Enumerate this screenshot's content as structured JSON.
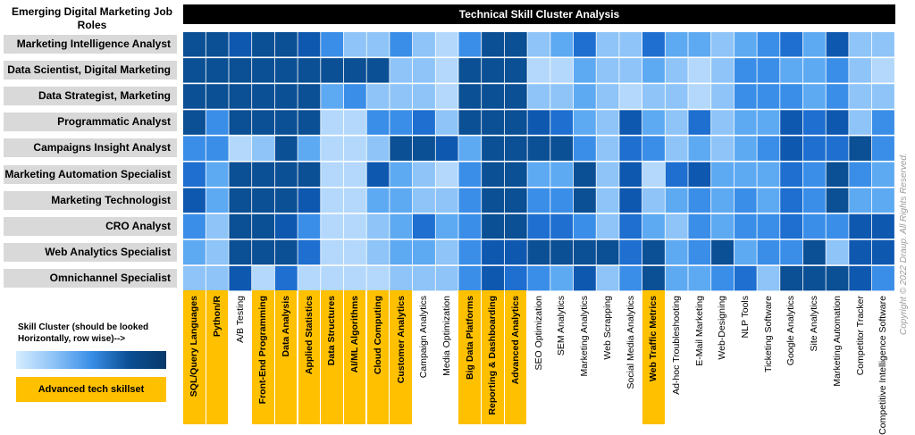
{
  "header": {
    "side_title": "Emerging Digital Marketing Job Roles",
    "banner_title": "Technical Skill Cluster Analysis"
  },
  "legend": {
    "title": "Skill Cluster  (should be looked Horizontally, row wise)-->",
    "advanced_label": "Advanced tech skillset",
    "scale_from_color": "#d6ecff",
    "scale_to_color": "#08386a"
  },
  "copyright": "Copyright © 2022 Draup. All Rights Reserved.",
  "colors": {
    "highlight": "#ffc000",
    "row_label_bg": "#d9d9d9",
    "banner_bg": "#000000",
    "levels": [
      "#d6ecff",
      "#b3d8fc",
      "#8ec4f7",
      "#5eaaf2",
      "#3a8ee8",
      "#1e6fd0",
      "#0f58b0",
      "#0b4f94",
      "#08386a"
    ]
  },
  "chart_data": {
    "type": "heatmap",
    "title": "Technical Skill Cluster Analysis",
    "value_scale": "1 (light) to 9 (dark) intensity, estimated",
    "rows": [
      "Marketing Intelligence Analyst",
      "Data Scientist, Digital Marketing",
      "Data Strategist, Marketing",
      "Programmatic Analyst",
      "Campaigns Insight Analyst",
      "Marketing Automation Specialist",
      "Marketing Technologist",
      "CRO Analyst",
      "Web Analytics Specialist",
      "Omnichannel Specialist"
    ],
    "columns": [
      {
        "label": "SQL/Query Languages",
        "advanced": true
      },
      {
        "label": "Python/R",
        "advanced": true
      },
      {
        "label": "A/B Testing",
        "advanced": false
      },
      {
        "label": "Front-End Programming",
        "advanced": true
      },
      {
        "label": "Data Analysis",
        "advanced": true
      },
      {
        "label": "Applied Statistics",
        "advanced": true
      },
      {
        "label": "Data Structures",
        "advanced": true
      },
      {
        "label": "AI/ML Algorithms",
        "advanced": true
      },
      {
        "label": "Cloud Computing",
        "advanced": true
      },
      {
        "label": "Customer Analytics",
        "advanced": true
      },
      {
        "label": "Campaign Analytics",
        "advanced": false
      },
      {
        "label": "Media Optimization",
        "advanced": false
      },
      {
        "label": "Big Data Platforms",
        "advanced": true
      },
      {
        "label": "Reporting & Dashboarding",
        "advanced": true
      },
      {
        "label": "Advanced Analytics",
        "advanced": true
      },
      {
        "label": "SEO Optimization",
        "advanced": false
      },
      {
        "label": "SEM Analytics",
        "advanced": false
      },
      {
        "label": "Marketing Analytics",
        "advanced": false
      },
      {
        "label": "Web Scrapping",
        "advanced": false
      },
      {
        "label": "Social Media Analytics",
        "advanced": false
      },
      {
        "label": "Web Traffic Metrics",
        "advanced": true
      },
      {
        "label": "Ad-hoc Troubleshooting",
        "advanced": false
      },
      {
        "label": "E-Mail Marketing",
        "advanced": false
      },
      {
        "label": "Web-Designing",
        "advanced": false
      },
      {
        "label": "NLP Tools",
        "advanced": false
      },
      {
        "label": "Ticketing Software",
        "advanced": false
      },
      {
        "label": "Google Analytics",
        "advanced": false
      },
      {
        "label": "Site Analytics",
        "advanced": false
      },
      {
        "label": "Marketing Automation",
        "advanced": false
      },
      {
        "label": "Competitor Tracker",
        "advanced": false
      },
      {
        "label": "Competitive Intelligence Software",
        "advanced": false
      }
    ],
    "values": [
      [
        8,
        8,
        7,
        8,
        8,
        7,
        5,
        3,
        3,
        5,
        3,
        2,
        5,
        8,
        8,
        3,
        4,
        6,
        3,
        3,
        6,
        4,
        4,
        3,
        4,
        5,
        6,
        4,
        7,
        3,
        3
      ],
      [
        8,
        8,
        8,
        8,
        8,
        8,
        8,
        8,
        8,
        3,
        3,
        2,
        8,
        8,
        8,
        2,
        2,
        4,
        3,
        3,
        4,
        3,
        2,
        3,
        5,
        5,
        4,
        4,
        5,
        3,
        2
      ],
      [
        8,
        8,
        8,
        8,
        8,
        8,
        4,
        5,
        3,
        3,
        3,
        2,
        8,
        8,
        8,
        3,
        3,
        4,
        3,
        2,
        3,
        3,
        2,
        3,
        5,
        5,
        5,
        4,
        5,
        3,
        3
      ],
      [
        8,
        5,
        8,
        8,
        8,
        8,
        2,
        2,
        5,
        5,
        6,
        3,
        8,
        8,
        8,
        7,
        6,
        4,
        3,
        7,
        4,
        3,
        6,
        3,
        4,
        4,
        7,
        6,
        7,
        3,
        5
      ],
      [
        5,
        5,
        2,
        3,
        8,
        4,
        2,
        2,
        3,
        8,
        8,
        7,
        4,
        8,
        8,
        8,
        8,
        5,
        3,
        6,
        5,
        3,
        4,
        3,
        4,
        5,
        7,
        6,
        6,
        8,
        5
      ],
      [
        6,
        4,
        8,
        8,
        8,
        8,
        2,
        2,
        7,
        4,
        3,
        2,
        5,
        8,
        8,
        4,
        4,
        8,
        3,
        7,
        2,
        6,
        7,
        4,
        4,
        4,
        6,
        5,
        8,
        5,
        4
      ],
      [
        7,
        4,
        8,
        8,
        8,
        7,
        2,
        2,
        4,
        4,
        3,
        3,
        5,
        8,
        8,
        5,
        5,
        8,
        3,
        7,
        3,
        4,
        5,
        4,
        5,
        4,
        6,
        5,
        8,
        4,
        4
      ],
      [
        5,
        3,
        8,
        8,
        7,
        5,
        2,
        2,
        3,
        4,
        6,
        4,
        5,
        8,
        8,
        6,
        6,
        5,
        3,
        6,
        4,
        3,
        5,
        4,
        5,
        5,
        6,
        5,
        5,
        7,
        7
      ],
      [
        4,
        3,
        8,
        8,
        8,
        6,
        2,
        2,
        3,
        4,
        4,
        3,
        5,
        7,
        7,
        8,
        8,
        8,
        8,
        6,
        8,
        4,
        5,
        8,
        4,
        5,
        5,
        8,
        3,
        7,
        7
      ],
      [
        3,
        3,
        7,
        2,
        6,
        2,
        2,
        2,
        2,
        3,
        3,
        3,
        5,
        7,
        6,
        5,
        4,
        7,
        3,
        5,
        8,
        4,
        4,
        5,
        6,
        3,
        8,
        8,
        8,
        7,
        5
      ]
    ]
  }
}
